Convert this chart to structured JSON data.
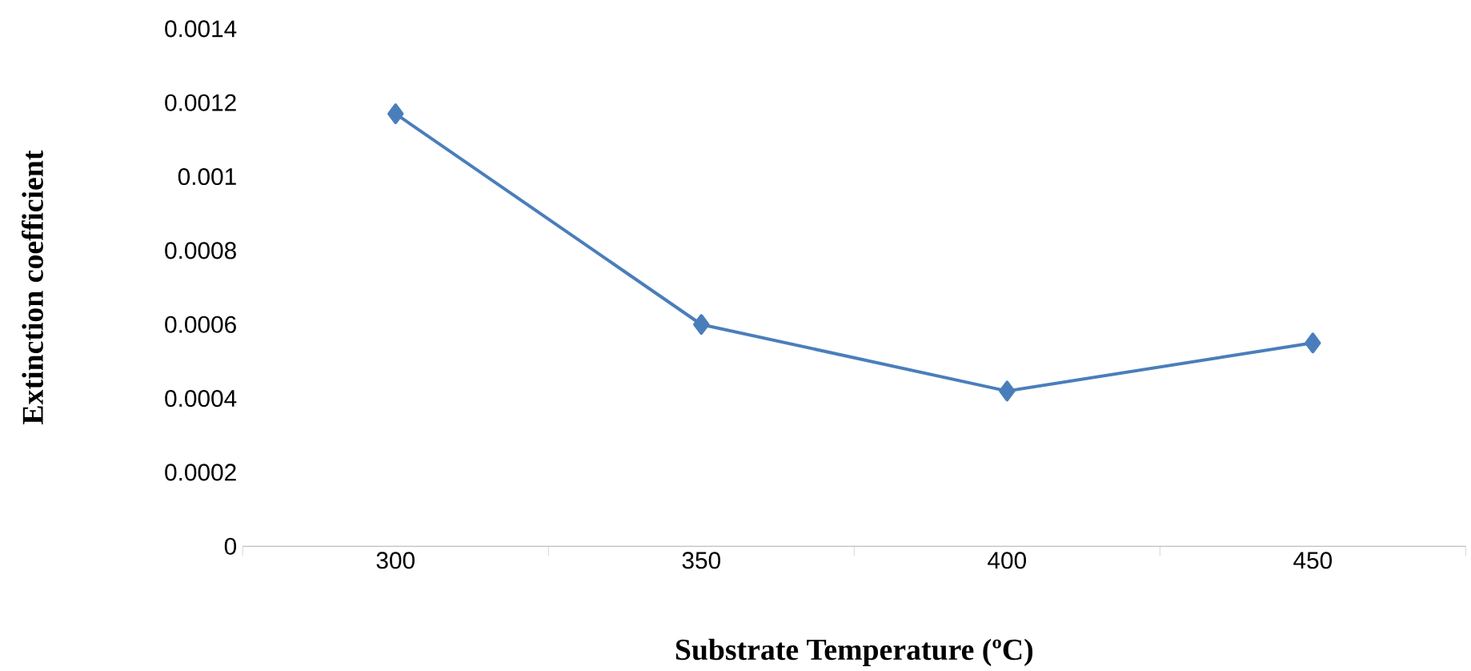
{
  "chart_data": {
    "type": "line",
    "xlabel": "Substrate Temperature (ºC)",
    "ylabel": "Extinction coefficient",
    "categories": [
      "300",
      "350",
      "400",
      "450"
    ],
    "series": [
      {
        "color": "#4a7ebb",
        "values": [
          0.00117,
          0.0006,
          0.00042,
          0.00055
        ]
      }
    ],
    "ylim": [
      0,
      0.0014
    ],
    "yticks": [
      0,
      0.0002,
      0.0004,
      0.0006,
      0.0008,
      0.001,
      0.0012,
      0.0014
    ],
    "marker": "diamond",
    "line_style": "solid"
  }
}
